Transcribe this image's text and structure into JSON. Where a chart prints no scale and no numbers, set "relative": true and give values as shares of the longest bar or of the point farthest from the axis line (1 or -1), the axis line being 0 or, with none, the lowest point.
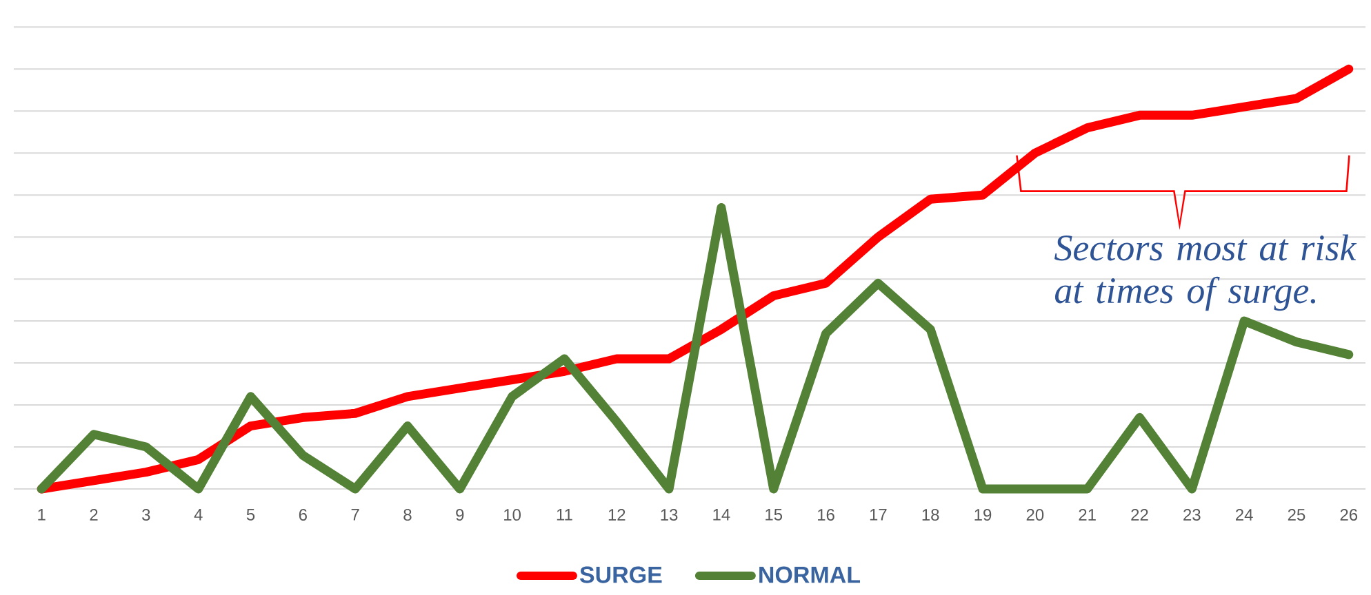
{
  "chart_data": {
    "type": "line",
    "categories": [
      "1",
      "2",
      "3",
      "4",
      "5",
      "6",
      "7",
      "8",
      "9",
      "10",
      "11",
      "12",
      "13",
      "14",
      "15",
      "16",
      "17",
      "18",
      "19",
      "20",
      "21",
      "22",
      "23",
      "24",
      "25",
      "26"
    ],
    "relative": true,
    "series": [
      {
        "name": "SURGE",
        "color": "#ff0000",
        "values": [
          0,
          0.02,
          0.04,
          0.07,
          0.15,
          0.17,
          0.18,
          0.22,
          0.24,
          0.26,
          0.28,
          0.31,
          0.31,
          0.38,
          0.46,
          0.49,
          0.6,
          0.69,
          0.7,
          0.8,
          0.86,
          0.89,
          0.89,
          0.91,
          0.93,
          1
        ]
      },
      {
        "name": "NORMAL",
        "color": "#538135",
        "values": [
          0,
          0.13,
          0.1,
          0,
          0.22,
          0.08,
          0,
          0.15,
          0,
          0.22,
          0.31,
          0.16,
          0,
          0.67,
          0,
          0.37,
          0.49,
          0.38,
          0,
          0,
          0,
          0.17,
          0,
          0.4,
          0.35,
          0.32
        ]
      }
    ],
    "grid": "y",
    "legend": "bottom",
    "tick_labels": "x",
    "line_style": "solid",
    "annotations": [
      "Sectors most at risk at times of surge."
    ]
  }
}
